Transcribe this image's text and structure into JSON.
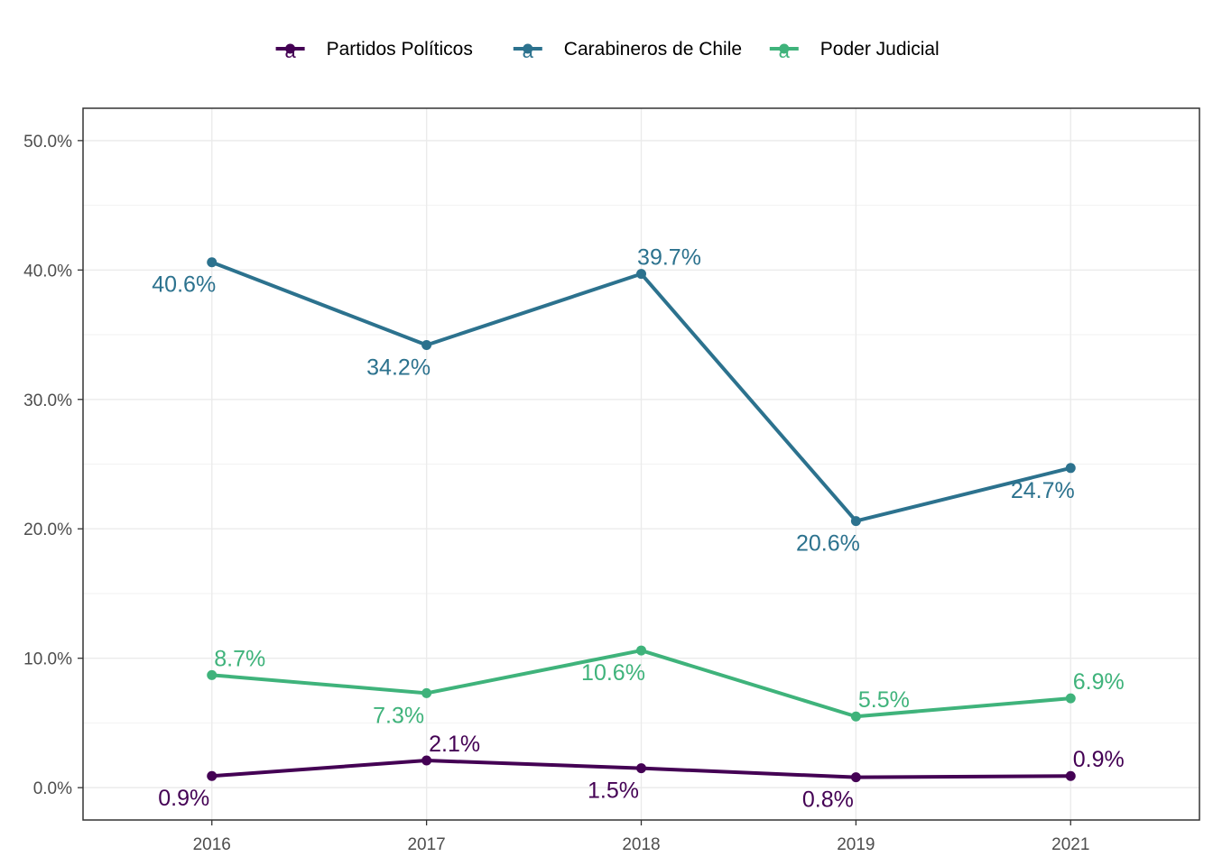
{
  "chart_data": {
    "type": "line",
    "title": "",
    "xlabel": "",
    "ylabel": "",
    "categories": [
      "2016",
      "2017",
      "2018",
      "2019",
      "2021"
    ],
    "ylim": [
      -2.5,
      52.5
    ],
    "y_ticks": [
      0,
      10,
      20,
      30,
      40,
      50
    ],
    "y_tick_labels": [
      "0.0%",
      "10.0%",
      "20.0%",
      "30.0%",
      "40.0%",
      "50.0%"
    ],
    "grid": true,
    "legend_position": "top",
    "legend_glyph": "a",
    "series": [
      {
        "name": "Partidos Políticos",
        "color": "#440154",
        "values": [
          0.9,
          2.1,
          1.5,
          0.8,
          0.9
        ],
        "labels": [
          "0.9%",
          "2.1%",
          "1.5%",
          "0.8%",
          "0.9%"
        ]
      },
      {
        "name": "Carabineros de Chile",
        "color": "#2c728e",
        "values": [
          40.6,
          34.2,
          39.7,
          20.6,
          24.7
        ],
        "labels": [
          "40.6%",
          "34.2%",
          "39.7%",
          "20.6%",
          "24.7%"
        ]
      },
      {
        "name": "Poder Judicial",
        "color": "#3fb37b",
        "values": [
          8.7,
          7.3,
          10.6,
          5.5,
          6.9
        ],
        "labels": [
          "8.7%",
          "7.3%",
          "10.6%",
          "5.5%",
          "6.9%"
        ]
      }
    ]
  }
}
